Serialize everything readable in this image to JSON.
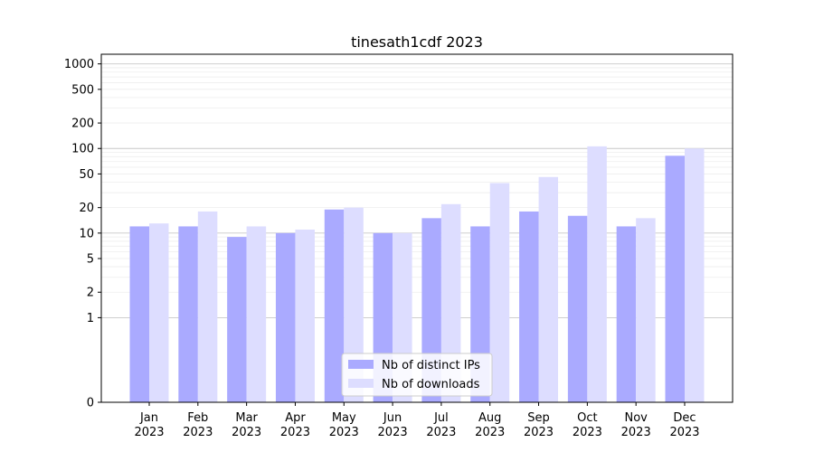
{
  "chart_data": {
    "type": "bar",
    "title": "tinesath1cdf 2023",
    "xlabel": "",
    "ylabel": "",
    "yscale": "symlog",
    "ylim": [
      0,
      1300
    ],
    "yticks": [
      0,
      1,
      2,
      5,
      10,
      20,
      50,
      100,
      200,
      500,
      1000
    ],
    "ytick_labels": [
      "0",
      "1",
      "2",
      "5",
      "10",
      "20",
      "50",
      "100",
      "200",
      "500",
      "1000"
    ],
    "categories": [
      "Jan\n2023",
      "Feb\n2023",
      "Mar\n2023",
      "Apr\n2023",
      "May\n2023",
      "Jun\n2023",
      "Jul\n2023",
      "Aug\n2023",
      "Sep\n2023",
      "Oct\n2023",
      "Nov\n2023",
      "Dec\n2023"
    ],
    "series": [
      {
        "name": "Nb of distinct IPs",
        "color": "#aaaaff",
        "values": [
          12,
          12,
          9,
          10,
          19,
          10,
          15,
          12,
          18,
          16,
          12,
          82
        ]
      },
      {
        "name": "Nb of downloads",
        "color": "#ddddff",
        "values": [
          13,
          18,
          12,
          11,
          20,
          10,
          22,
          39,
          46,
          106,
          15,
          100
        ]
      }
    ],
    "legend": "bottom-center",
    "grid": true
  }
}
